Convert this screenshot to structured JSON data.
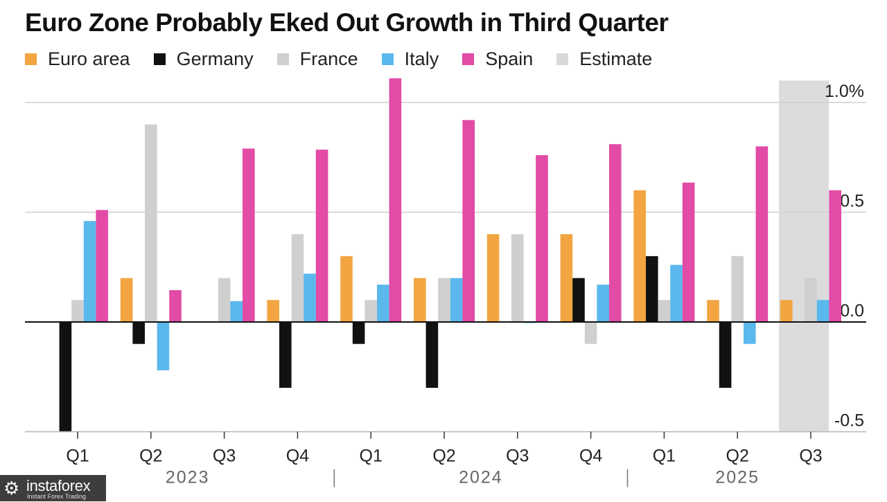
{
  "header": {
    "title": "Euro Zone Probably Eked Out Growth in Third Quarter"
  },
  "legend": [
    {
      "label": "Euro area",
      "color": "#f2a541"
    },
    {
      "label": "Germany",
      "color": "#111111"
    },
    {
      "label": "France",
      "color": "#cfcfcf"
    },
    {
      "label": "Italy",
      "color": "#5ab8ec"
    },
    {
      "label": "Spain",
      "color": "#e24ba6"
    },
    {
      "label": "Estimate",
      "color": "#d9d9d9"
    }
  ],
  "watermark": {
    "icon": "gear-icon",
    "brand": "instaforex",
    "tagline": "Instant Forex Trading"
  },
  "chart_data": {
    "type": "bar",
    "title": "Euro Zone Probably Eked Out Growth in Third Quarter",
    "xlabel": "",
    "ylabel": "",
    "ylim": [
      -0.5,
      1.1
    ],
    "yticks": [
      1.0,
      0.5,
      0.0,
      -0.5
    ],
    "ytick_labels": [
      "1.0%",
      "0.5",
      "0.0",
      "-0.5"
    ],
    "categories": [
      "Q1",
      "Q2",
      "Q3",
      "Q4",
      "Q1",
      "Q2",
      "Q3",
      "Q4",
      "Q1",
      "Q2",
      "Q3"
    ],
    "years": [
      {
        "label": "2023",
        "from": 0,
        "to": 3
      },
      {
        "label": "2024",
        "from": 4,
        "to": 7
      },
      {
        "label": "2025",
        "from": 8,
        "to": 10
      }
    ],
    "estimate_category_index": 10,
    "series": [
      {
        "name": "Euro area",
        "color": "#f2a541",
        "values": [
          0.0,
          0.2,
          0.0,
          0.1,
          0.3,
          0.2,
          0.4,
          0.4,
          0.6,
          0.1,
          0.1
        ]
      },
      {
        "name": "Germany",
        "color": "#111111",
        "values": [
          -0.5,
          -0.1,
          0.0,
          -0.3,
          -0.1,
          -0.3,
          0.0,
          0.2,
          0.3,
          -0.3,
          0.0
        ]
      },
      {
        "name": "France",
        "color": "#cfcfcf",
        "values": [
          0.1,
          0.9,
          0.2,
          0.4,
          0.1,
          0.2,
          0.4,
          -0.1,
          0.1,
          0.3,
          0.2
        ]
      },
      {
        "name": "Italy",
        "color": "#5ab8ec",
        "values": [
          0.46,
          -0.22,
          0.095,
          0.22,
          0.17,
          0.2,
          -0.005,
          0.17,
          0.26,
          -0.1,
          0.1
        ]
      },
      {
        "name": "Spain",
        "color": "#e24ba6",
        "values": [
          0.51,
          0.145,
          0.79,
          0.785,
          1.11,
          0.92,
          0.76,
          0.81,
          0.635,
          0.8,
          0.6
        ]
      }
    ]
  }
}
